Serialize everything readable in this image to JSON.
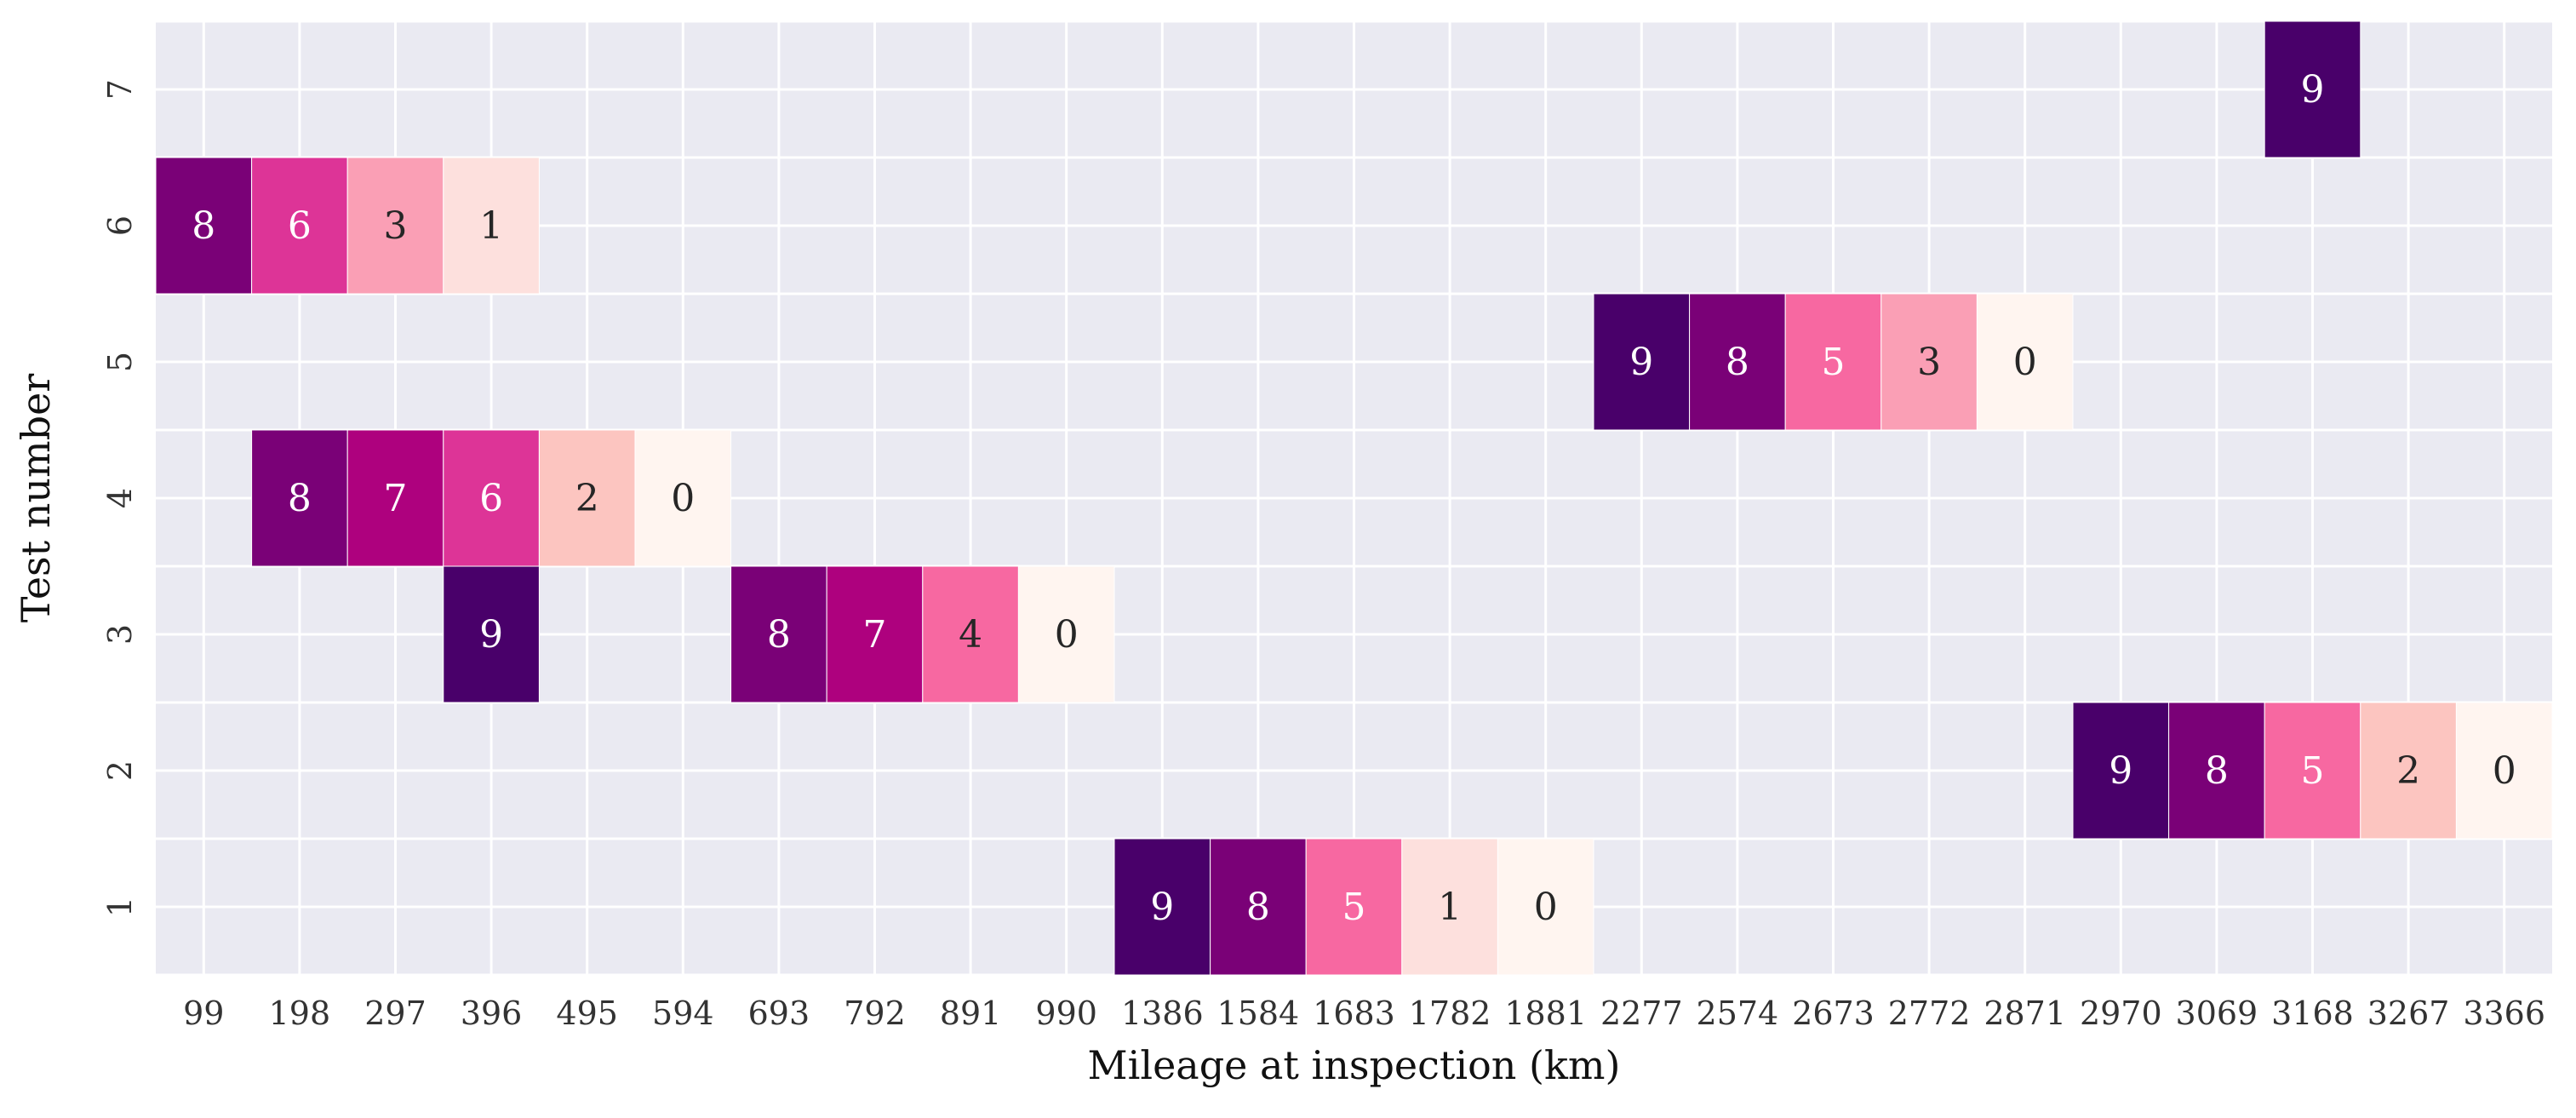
{
  "chart_data": {
    "type": "heatmap",
    "xlabel": "Mileage at inspection (km)",
    "ylabel": "Test number",
    "x_ticks": [
      "99",
      "198",
      "297",
      "396",
      "495",
      "594",
      "693",
      "792",
      "891",
      "990",
      "1386",
      "1584",
      "1683",
      "1782",
      "1881",
      "2277",
      "2574",
      "2673",
      "2772",
      "2871",
      "2970",
      "3069",
      "3168",
      "3267",
      "3366"
    ],
    "y_ticks": [
      "7",
      "6",
      "5",
      "4",
      "3",
      "2",
      "1"
    ],
    "colormap": [
      "#fff5f0",
      "#fde0dd",
      "#fcc5c0",
      "#fa9fb5",
      "#f768a1",
      "#dd3497",
      "#ae017e",
      "#7a0177",
      "#49006a"
    ],
    "background": "#eaeaf2",
    "cells": [
      {
        "test": "7",
        "mileage": "3168",
        "value": 9
      },
      {
        "test": "6",
        "mileage": "99",
        "value": 8
      },
      {
        "test": "6",
        "mileage": "198",
        "value": 6
      },
      {
        "test": "6",
        "mileage": "297",
        "value": 3
      },
      {
        "test": "6",
        "mileage": "396",
        "value": 1
      },
      {
        "test": "5",
        "mileage": "2277",
        "value": 9
      },
      {
        "test": "5",
        "mileage": "2574",
        "value": 8
      },
      {
        "test": "5",
        "mileage": "2673",
        "value": 5
      },
      {
        "test": "5",
        "mileage": "2772",
        "value": 3
      },
      {
        "test": "5",
        "mileage": "2871",
        "value": 0
      },
      {
        "test": "4",
        "mileage": "198",
        "value": 8
      },
      {
        "test": "4",
        "mileage": "297",
        "value": 7
      },
      {
        "test": "4",
        "mileage": "396",
        "value": 6
      },
      {
        "test": "4",
        "mileage": "495",
        "value": 2
      },
      {
        "test": "4",
        "mileage": "594",
        "value": 0
      },
      {
        "test": "3",
        "mileage": "396",
        "value": 9
      },
      {
        "test": "3",
        "mileage": "693",
        "value": 8
      },
      {
        "test": "3",
        "mileage": "792",
        "value": 7
      },
      {
        "test": "3",
        "mileage": "891",
        "value": 4
      },
      {
        "test": "3",
        "mileage": "990",
        "value": 0
      },
      {
        "test": "2",
        "mileage": "2970",
        "value": 9
      },
      {
        "test": "2",
        "mileage": "3069",
        "value": 8
      },
      {
        "test": "2",
        "mileage": "3168",
        "value": 5
      },
      {
        "test": "2",
        "mileage": "3267",
        "value": 2
      },
      {
        "test": "2",
        "mileage": "3366",
        "value": 0
      },
      {
        "test": "1",
        "mileage": "1386",
        "value": 9
      },
      {
        "test": "1",
        "mileage": "1584",
        "value": 8
      },
      {
        "test": "1",
        "mileage": "1683",
        "value": 5
      },
      {
        "test": "1",
        "mileage": "1782",
        "value": 1
      },
      {
        "test": "1",
        "mileage": "1881",
        "value": 0
      }
    ]
  }
}
